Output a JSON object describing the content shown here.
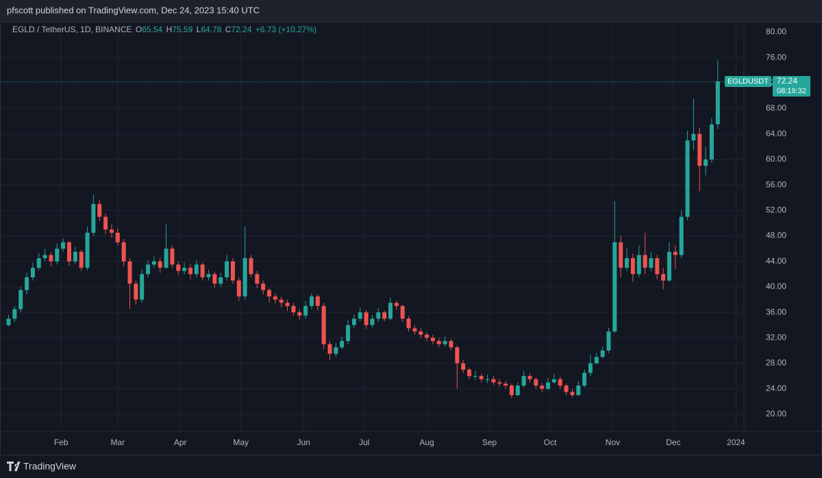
{
  "chart_data": {
    "type": "candlestick",
    "header": "pfscott published on TradingView.com, Dec 24, 2023 15:40 UTC",
    "legend_symbol": "EGLD / TetherUS, 1D, BINANCE",
    "ohlc_labels": [
      "O",
      "H",
      "L",
      "C"
    ],
    "change": "+6.73 (+10.27%)",
    "ticker": "EGLDUSDT",
    "countdown": "08:19:32",
    "footer": "TradingView",
    "up_color": "#26a69a",
    "down_color": "#ef5350",
    "grid": true,
    "xlim": [
      -1.3,
      121.2
    ],
    "xticks": [
      {
        "value": 8.67,
        "label": "Feb"
      },
      {
        "value": 18,
        "label": "Mar"
      },
      {
        "value": 28.33,
        "label": "Apr"
      },
      {
        "value": 38.33,
        "label": "May"
      },
      {
        "value": 48.67,
        "label": "Jun"
      },
      {
        "value": 58.67,
        "label": "Jul"
      },
      {
        "value": 69,
        "label": "Aug"
      },
      {
        "value": 79.33,
        "label": "Sep"
      },
      {
        "value": 89.33,
        "label": "Oct"
      },
      {
        "value": 99.67,
        "label": "Nov"
      },
      {
        "value": 109.67,
        "label": "Dec"
      },
      {
        "value": 120,
        "label": "2024"
      }
    ],
    "ylim": [
      17.3,
      81.6
    ],
    "yticks": [
      {
        "value": 20,
        "label": "20.00"
      },
      {
        "value": 24,
        "label": "24.00"
      },
      {
        "value": 28,
        "label": "28.00"
      },
      {
        "value": 32,
        "label": "32.00"
      },
      {
        "value": 36,
        "label": "36.00"
      },
      {
        "value": 40,
        "label": "40.00"
      },
      {
        "value": 44,
        "label": "44.00"
      },
      {
        "value": 48,
        "label": "48.00"
      },
      {
        "value": 52,
        "label": "52.00"
      },
      {
        "value": 56,
        "label": "56.00"
      },
      {
        "value": 60,
        "label": "60.00"
      },
      {
        "value": 64,
        "label": "64.00"
      },
      {
        "value": 68,
        "label": "68.00"
      },
      {
        "value": 72,
        "label": "72.00"
      },
      {
        "value": 76,
        "label": "76.00"
      },
      {
        "value": 80,
        "label": "80.00"
      }
    ],
    "open": [
      34.0,
      35.0,
      36.5,
      39.5,
      41.5,
      43.0,
      44.5,
      45.0,
      44.0,
      46.0,
      47.0,
      44.0,
      45.5,
      43.0,
      48.5,
      53.0,
      51.0,
      49.0,
      48.5,
      47.0,
      44.0,
      40.5,
      38.0,
      42.0,
      43.5,
      44.0,
      43.0,
      46.0,
      43.5,
      42.5,
      43.0,
      42.0,
      43.5,
      41.5,
      42.0,
      40.5,
      41.5,
      44.0,
      41.0,
      38.5,
      44.5,
      42.0,
      40.5,
      39.5,
      38.5,
      38.0,
      37.5,
      37.0,
      36.0,
      35.5,
      37.0,
      38.5,
      37.0,
      31.0,
      29.5,
      30.5,
      31.5,
      34.0,
      35.0,
      36.0,
      34.0,
      35.0,
      36.0,
      35.0,
      37.5,
      37.0,
      35.0,
      33.5,
      33.0,
      32.5,
      32.0,
      31.5,
      31.0,
      31.5,
      30.5,
      28.0,
      27.0,
      26.0,
      26.0,
      25.5,
      25.5,
      25.0,
      24.8,
      24.5,
      23.0,
      24.5,
      26.0,
      25.5,
      24.5,
      24.0,
      25.0,
      25.5,
      24.5,
      23.5,
      23.0,
      24.5,
      26.5,
      28.0,
      29.0,
      30.0,
      33.0,
      47.0,
      43.0,
      44.5,
      42.0,
      45.0,
      43.0,
      44.5,
      42.0,
      41.0,
      45.5,
      45.0,
      51.0,
      63.0,
      64.0,
      59.0,
      60.0,
      65.54
    ],
    "high": [
      35.6,
      37.0,
      40.0,
      42.2,
      43.8,
      45.3,
      46.0,
      45.5,
      46.8,
      47.6,
      47.2,
      46.3,
      45.8,
      49.5,
      54.5,
      53.6,
      51.5,
      49.8,
      49.2,
      47.5,
      44.5,
      41.0,
      42.8,
      44.2,
      44.8,
      44.6,
      49.8,
      46.5,
      44.0,
      43.8,
      43.6,
      44.2,
      43.8,
      42.7,
      42.4,
      42.2,
      45.0,
      44.5,
      41.5,
      49.5,
      45.0,
      42.5,
      41.0,
      39.8,
      39.0,
      38.5,
      38.0,
      37.5,
      36.5,
      37.8,
      39.0,
      38.8,
      37.5,
      31.5,
      31.2,
      32.2,
      34.8,
      35.7,
      36.8,
      36.4,
      35.6,
      36.7,
      36.3,
      38.3,
      37.8,
      37.2,
      35.4,
      34.0,
      33.5,
      32.9,
      32.5,
      31.9,
      32.2,
      31.8,
      30.8,
      28.5,
      27.3,
      26.8,
      26.4,
      26.2,
      26.0,
      25.5,
      25.2,
      24.8,
      25.0,
      26.8,
      26.5,
      25.8,
      24.9,
      25.7,
      26.3,
      25.9,
      24.8,
      24.0,
      25.2,
      27.0,
      29.3,
      29.6,
      30.6,
      33.6,
      53.5,
      48.0,
      46.0,
      45.2,
      46.5,
      48.5,
      45.5,
      45.0,
      43.0,
      47.0,
      46.5,
      52.0,
      64.5,
      69.5,
      65.0,
      62.0,
      66.5,
      75.59
    ],
    "low": [
      33.8,
      34.5,
      36.0,
      38.8,
      41.0,
      42.6,
      44.0,
      43.2,
      43.5,
      45.5,
      43.3,
      43.6,
      42.5,
      42.6,
      48.0,
      50.3,
      48.3,
      47.8,
      46.5,
      43.2,
      36.5,
      37.2,
      37.5,
      41.5,
      43.0,
      42.2,
      42.8,
      43.0,
      41.8,
      42.0,
      41.2,
      41.5,
      41.0,
      41.0,
      39.8,
      40.0,
      41.0,
      40.5,
      37.8,
      38.0,
      41.5,
      39.8,
      38.8,
      37.6,
      37.4,
      36.8,
      36.2,
      35.5,
      34.8,
      35.0,
      36.5,
      36.3,
      30.2,
      28.5,
      29.0,
      30.2,
      31.0,
      33.5,
      34.6,
      33.4,
      33.6,
      34.5,
      34.6,
      34.8,
      36.4,
      34.5,
      33.0,
      32.5,
      32.0,
      31.5,
      31.0,
      30.5,
      30.6,
      30.0,
      24.0,
      26.5,
      25.5,
      25.4,
      25.0,
      24.9,
      24.6,
      24.3,
      24.0,
      22.5,
      22.8,
      24.2,
      25.0,
      24.0,
      23.5,
      23.8,
      24.8,
      24.0,
      23.0,
      22.7,
      22.9,
      24.2,
      26.0,
      27.8,
      28.8,
      29.6,
      32.8,
      41.5,
      42.5,
      40.8,
      41.5,
      42.0,
      42.5,
      41.2,
      39.6,
      40.8,
      42.8,
      44.5,
      50.5,
      61.5,
      55.0,
      57.5,
      59.5,
      64.78
    ],
    "close": [
      35.0,
      36.5,
      39.5,
      41.5,
      43.0,
      44.5,
      45.0,
      44.0,
      46.0,
      47.0,
      44.0,
      45.5,
      43.0,
      48.5,
      53.0,
      51.0,
      49.0,
      48.5,
      47.0,
      44.0,
      40.5,
      38.0,
      42.0,
      43.5,
      44.0,
      43.0,
      46.0,
      43.5,
      42.5,
      43.0,
      42.0,
      43.5,
      41.5,
      42.0,
      40.5,
      41.5,
      44.0,
      41.0,
      38.5,
      44.5,
      42.0,
      40.5,
      39.5,
      38.5,
      38.0,
      37.5,
      37.0,
      36.0,
      35.5,
      37.0,
      38.5,
      37.0,
      31.0,
      29.5,
      30.5,
      31.5,
      34.0,
      35.0,
      36.0,
      34.0,
      35.0,
      36.0,
      35.0,
      37.5,
      37.0,
      35.0,
      33.5,
      33.0,
      32.5,
      32.0,
      31.5,
      31.0,
      31.5,
      30.5,
      28.0,
      27.0,
      26.0,
      26.0,
      25.5,
      25.5,
      25.0,
      24.8,
      24.5,
      23.0,
      24.5,
      26.0,
      25.5,
      24.5,
      24.0,
      25.0,
      25.5,
      24.5,
      23.5,
      23.0,
      24.5,
      26.5,
      28.0,
      29.0,
      30.0,
      33.0,
      47.0,
      43.0,
      44.5,
      42.0,
      45.0,
      43.0,
      44.5,
      42.0,
      41.0,
      45.5,
      45.0,
      51.0,
      63.0,
      64.0,
      59.0,
      60.0,
      65.51,
      72.24
    ]
  }
}
